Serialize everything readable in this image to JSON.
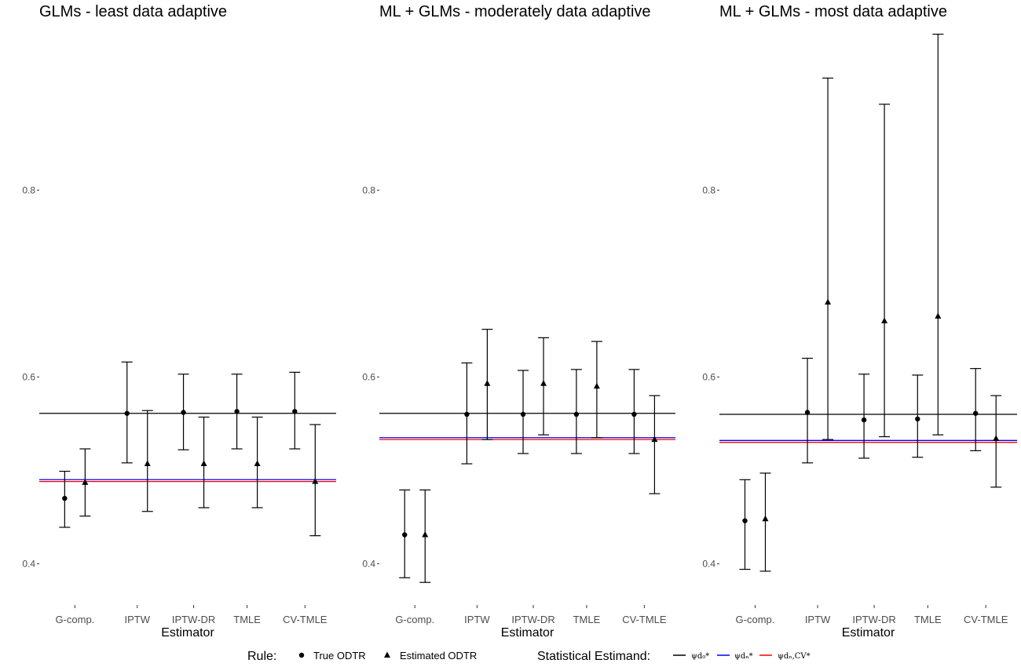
{
  "chart_data": [
    {
      "type": "errorbar",
      "title": "GLMs - least data adaptive",
      "xlabel": "Estimator",
      "ylabel": "",
      "categories": [
        "G-comp.",
        "IPTW",
        "IPTW-DR",
        "TMLE",
        "CV-TMLE"
      ],
      "yticks": [
        "0.4",
        "0.6",
        "0.8"
      ],
      "ylim": [
        0.36,
        0.97
      ],
      "grid": false,
      "series": [
        {
          "name": "True ODTR",
          "marker": "circle",
          "points": [
            {
              "est": 0.47,
              "lo": 0.439,
              "hi": 0.499
            },
            {
              "est": 0.561,
              "lo": 0.508,
              "hi": 0.616
            },
            {
              "est": 0.562,
              "lo": 0.522,
              "hi": 0.603
            },
            {
              "est": 0.563,
              "lo": 0.523,
              "hi": 0.603
            },
            {
              "est": 0.563,
              "lo": 0.523,
              "hi": 0.605
            }
          ]
        },
        {
          "name": "Estimated ODTR",
          "marker": "triangle",
          "points": [
            {
              "est": 0.487,
              "lo": 0.451,
              "hi": 0.523
            },
            {
              "est": 0.507,
              "lo": 0.456,
              "hi": 0.564
            },
            {
              "est": 0.507,
              "lo": 0.46,
              "hi": 0.557
            },
            {
              "est": 0.507,
              "lo": 0.46,
              "hi": 0.557
            },
            {
              "est": 0.488,
              "lo": 0.43,
              "hi": 0.549
            }
          ]
        }
      ],
      "hlines": [
        {
          "name": "psi_d0",
          "value": 0.561,
          "color": "#000000"
        },
        {
          "name": "psi_dn",
          "value": 0.49,
          "color": "#0000ff"
        },
        {
          "name": "psi_dn_cv",
          "value": 0.488,
          "color": "#ff0000"
        }
      ]
    },
    {
      "type": "errorbar",
      "title": "ML + GLMs - moderately data adaptive",
      "xlabel": "Estimator",
      "ylabel": "",
      "categories": [
        "G-comp.",
        "IPTW",
        "IPTW-DR",
        "TMLE",
        "CV-TMLE"
      ],
      "yticks": [
        "0.4",
        "0.6",
        "0.8"
      ],
      "ylim": [
        0.36,
        0.97
      ],
      "grid": false,
      "series": [
        {
          "name": "True ODTR",
          "marker": "circle",
          "points": [
            {
              "est": 0.431,
              "lo": 0.385,
              "hi": 0.479
            },
            {
              "est": 0.56,
              "lo": 0.507,
              "hi": 0.615
            },
            {
              "est": 0.56,
              "lo": 0.518,
              "hi": 0.607
            },
            {
              "est": 0.56,
              "lo": 0.518,
              "hi": 0.608
            },
            {
              "est": 0.56,
              "lo": 0.518,
              "hi": 0.608
            }
          ]
        },
        {
          "name": "Estimated ODTR",
          "marker": "triangle",
          "points": [
            {
              "est": 0.431,
              "lo": 0.38,
              "hi": 0.479
            },
            {
              "est": 0.593,
              "lo": 0.533,
              "hi": 0.651
            },
            {
              "est": 0.593,
              "lo": 0.538,
              "hi": 0.642
            },
            {
              "est": 0.59,
              "lo": 0.535,
              "hi": 0.638
            },
            {
              "est": 0.533,
              "lo": 0.475,
              "hi": 0.58
            }
          ]
        }
      ],
      "hlines": [
        {
          "name": "psi_d0",
          "value": 0.561,
          "color": "#000000"
        },
        {
          "name": "psi_dn",
          "value": 0.535,
          "color": "#0000ff"
        },
        {
          "name": "psi_dn_cv",
          "value": 0.533,
          "color": "#ff0000"
        }
      ]
    },
    {
      "type": "errorbar",
      "title": "ML + GLMs - most data adaptive",
      "xlabel": "Estimator",
      "ylabel": "",
      "categories": [
        "G-comp.",
        "IPTW",
        "IPTW-DR",
        "TMLE",
        "CV-TMLE"
      ],
      "yticks": [
        "0.4",
        "0.6",
        "0.8"
      ],
      "ylim": [
        0.36,
        0.97
      ],
      "grid": false,
      "series": [
        {
          "name": "True ODTR",
          "marker": "circle",
          "points": [
            {
              "est": 0.446,
              "lo": 0.394,
              "hi": 0.49
            },
            {
              "est": 0.562,
              "lo": 0.508,
              "hi": 0.62
            },
            {
              "est": 0.554,
              "lo": 0.513,
              "hi": 0.603
            },
            {
              "est": 0.555,
              "lo": 0.514,
              "hi": 0.602
            },
            {
              "est": 0.561,
              "lo": 0.521,
              "hi": 0.609
            }
          ]
        },
        {
          "name": "Estimated ODTR",
          "marker": "triangle",
          "points": [
            {
              "est": 0.448,
              "lo": 0.392,
              "hi": 0.497
            },
            {
              "est": 0.68,
              "lo": 0.533,
              "hi": 0.92
            },
            {
              "est": 0.66,
              "lo": 0.536,
              "hi": 0.892
            },
            {
              "est": 0.665,
              "lo": 0.538,
              "hi": 0.967
            },
            {
              "est": 0.534,
              "lo": 0.482,
              "hi": 0.58
            }
          ]
        }
      ],
      "hlines": [
        {
          "name": "psi_d0",
          "value": 0.56,
          "color": "#000000"
        },
        {
          "name": "psi_dn",
          "value": 0.532,
          "color": "#0000ff"
        },
        {
          "name": "psi_dn_cv",
          "value": 0.53,
          "color": "#ff0000"
        }
      ]
    }
  ],
  "legend": {
    "rule_title": "Rule:",
    "rule_items": [
      {
        "label": "True ODTR",
        "marker": "circle"
      },
      {
        "label": "Estimated ODTR",
        "marker": "triangle"
      }
    ],
    "estimand_title": "Statistical Estimand:",
    "estimand_items": [
      {
        "label": "ψd₀*",
        "color": "#000000"
      },
      {
        "label": "ψdₙ*",
        "color": "#0000ff"
      },
      {
        "label": "ψdₙ,CV*",
        "color": "#ff0000"
      }
    ]
  }
}
